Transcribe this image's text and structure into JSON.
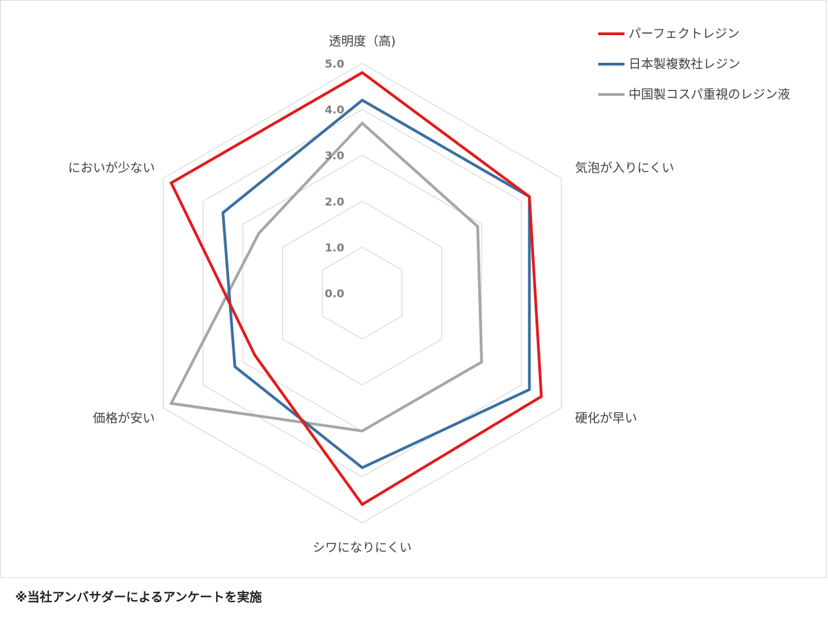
{
  "chart_data": {
    "type": "radar",
    "axes": [
      "透明度（高)",
      "気泡が入りにくい",
      "硬化が早い",
      "シワになりにくい",
      "価格が安い",
      "においが少ない"
    ],
    "rlim": [
      0,
      5
    ],
    "ticks": [
      "0.0",
      "1.0",
      "2.0",
      "3.0",
      "4.0",
      "5.0"
    ],
    "grid": true,
    "legend_position": "top-right",
    "series": [
      {
        "name": "パーフェクトレジン",
        "color": "#e31a1c",
        "values": [
          4.8,
          4.2,
          4.5,
          4.6,
          2.7,
          4.8
        ]
      },
      {
        "name": "日本製複数社レジン",
        "color": "#3a6fa0",
        "values": [
          4.2,
          4.2,
          4.2,
          3.8,
          3.2,
          3.5
        ]
      },
      {
        "name": "中国製コスパ重視のレジン液",
        "color": "#a6a6a6",
        "values": [
          3.7,
          2.9,
          3.0,
          3.0,
          4.8,
          2.6
        ]
      }
    ]
  },
  "footnote": "※当社アンバサダーによるアンケートを実施"
}
